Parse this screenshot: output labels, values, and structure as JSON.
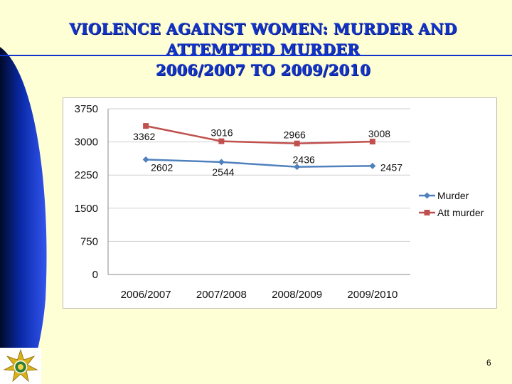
{
  "colors": {
    "background": "#ffffd6",
    "title": "#1133cc",
    "band": "#1133cc",
    "murder": "#4f81bd",
    "att_murder": "#c0504d"
  },
  "icons": {
    "badge": "police-star-badge-icon"
  },
  "slide": {
    "title_lines": [
      "VIOLENCE AGAINST WOMEN:  MURDER AND",
      "ATTEMPTED MURDER",
      "2006/2007 TO 2009/2010"
    ],
    "page_number": "6"
  },
  "chart_data": {
    "type": "line",
    "title": "VIOLENCE AGAINST WOMEN:  MURDER AND ATTEMPTED MURDER 2006/2007 TO 2009/2010",
    "categories": [
      "2006/2007",
      "2007/2008",
      "2008/2009",
      "2009/2010"
    ],
    "series": [
      {
        "name": "Murder",
        "values": [
          2602,
          2544,
          2436,
          2457
        ],
        "color": "#4f81bd",
        "marker": "diamond"
      },
      {
        "name": "Att murder",
        "values": [
          3362,
          3016,
          2966,
          3008
        ],
        "color": "#c0504d",
        "marker": "square"
      }
    ],
    "yticks": [
      "0",
      "750",
      "1500",
      "2250",
      "3000",
      "3750"
    ],
    "ylim": [
      0,
      3750
    ],
    "grid": true,
    "legend": "right",
    "data_labels": true
  }
}
